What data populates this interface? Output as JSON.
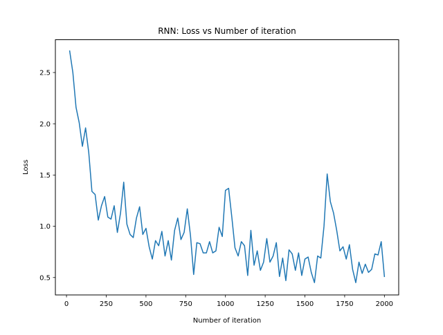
{
  "chart_data": {
    "type": "line",
    "title": "RNN: Loss vs Number of iteration",
    "xlabel": "Number of iteration",
    "ylabel": "Loss",
    "xlim": [
      -70,
      2090
    ],
    "ylim": [
      0.33,
      2.82
    ],
    "xticks": [
      0,
      250,
      500,
      750,
      1000,
      1250,
      1500,
      1750,
      2000
    ],
    "xtick_labels": [
      "0",
      "250",
      "500",
      "750",
      "1000",
      "1250",
      "1500",
      "1750",
      "2000"
    ],
    "yticks": [
      0.5,
      1.0,
      1.5,
      2.0,
      2.5
    ],
    "ytick_labels": [
      "0.5",
      "1.0",
      "1.5",
      "2.0",
      "2.5"
    ],
    "grid": false,
    "line_color": "#1f77b4",
    "series": [
      {
        "x": [
          20,
          40,
          60,
          80,
          100,
          120,
          140,
          160,
          180,
          200,
          220,
          240,
          260,
          280,
          300,
          320,
          340,
          360,
          380,
          400,
          420,
          440,
          460,
          480,
          500,
          520,
          540,
          560,
          580,
          600,
          620,
          640,
          660,
          680,
          700,
          720,
          740,
          760,
          780,
          800,
          820,
          840,
          860,
          880,
          900,
          920,
          940,
          960,
          980,
          1000,
          1020,
          1040,
          1060,
          1080,
          1100,
          1120,
          1140,
          1160,
          1180,
          1200,
          1220,
          1240,
          1260,
          1280,
          1300,
          1320,
          1340,
          1360,
          1380,
          1400,
          1420,
          1440,
          1460,
          1480,
          1500,
          1520,
          1540,
          1560,
          1580,
          1600,
          1620,
          1640,
          1660,
          1680,
          1700,
          1720,
          1740,
          1760,
          1780,
          1800,
          1820,
          1840,
          1860,
          1880,
          1900,
          1920,
          1940,
          1960,
          1980,
          2000
        ],
        "y": [
          2.71,
          2.5,
          2.16,
          2.01,
          1.78,
          1.96,
          1.72,
          1.34,
          1.31,
          1.06,
          1.2,
          1.29,
          1.09,
          1.07,
          1.2,
          0.94,
          1.13,
          1.43,
          1.02,
          0.92,
          0.89,
          1.08,
          1.19,
          0.92,
          0.98,
          0.8,
          0.68,
          0.86,
          0.81,
          0.95,
          0.71,
          0.86,
          0.67,
          0.96,
          1.08,
          0.87,
          0.94,
          1.17,
          0.91,
          0.53,
          0.84,
          0.83,
          0.74,
          0.74,
          0.85,
          0.74,
          0.76,
          0.99,
          0.9,
          1.35,
          1.37,
          1.09,
          0.79,
          0.71,
          0.85,
          0.81,
          0.52,
          0.96,
          0.62,
          0.76,
          0.57,
          0.65,
          0.88,
          0.65,
          0.71,
          0.84,
          0.51,
          0.69,
          0.47,
          0.77,
          0.73,
          0.57,
          0.74,
          0.52,
          0.68,
          0.7,
          0.55,
          0.45,
          0.71,
          0.69,
          1.0,
          1.51,
          1.24,
          1.13,
          0.96,
          0.76,
          0.8,
          0.68,
          0.82,
          0.58,
          0.45,
          0.65,
          0.54,
          0.63,
          0.55,
          0.58,
          0.73,
          0.72,
          0.85,
          0.51
        ]
      }
    ]
  }
}
